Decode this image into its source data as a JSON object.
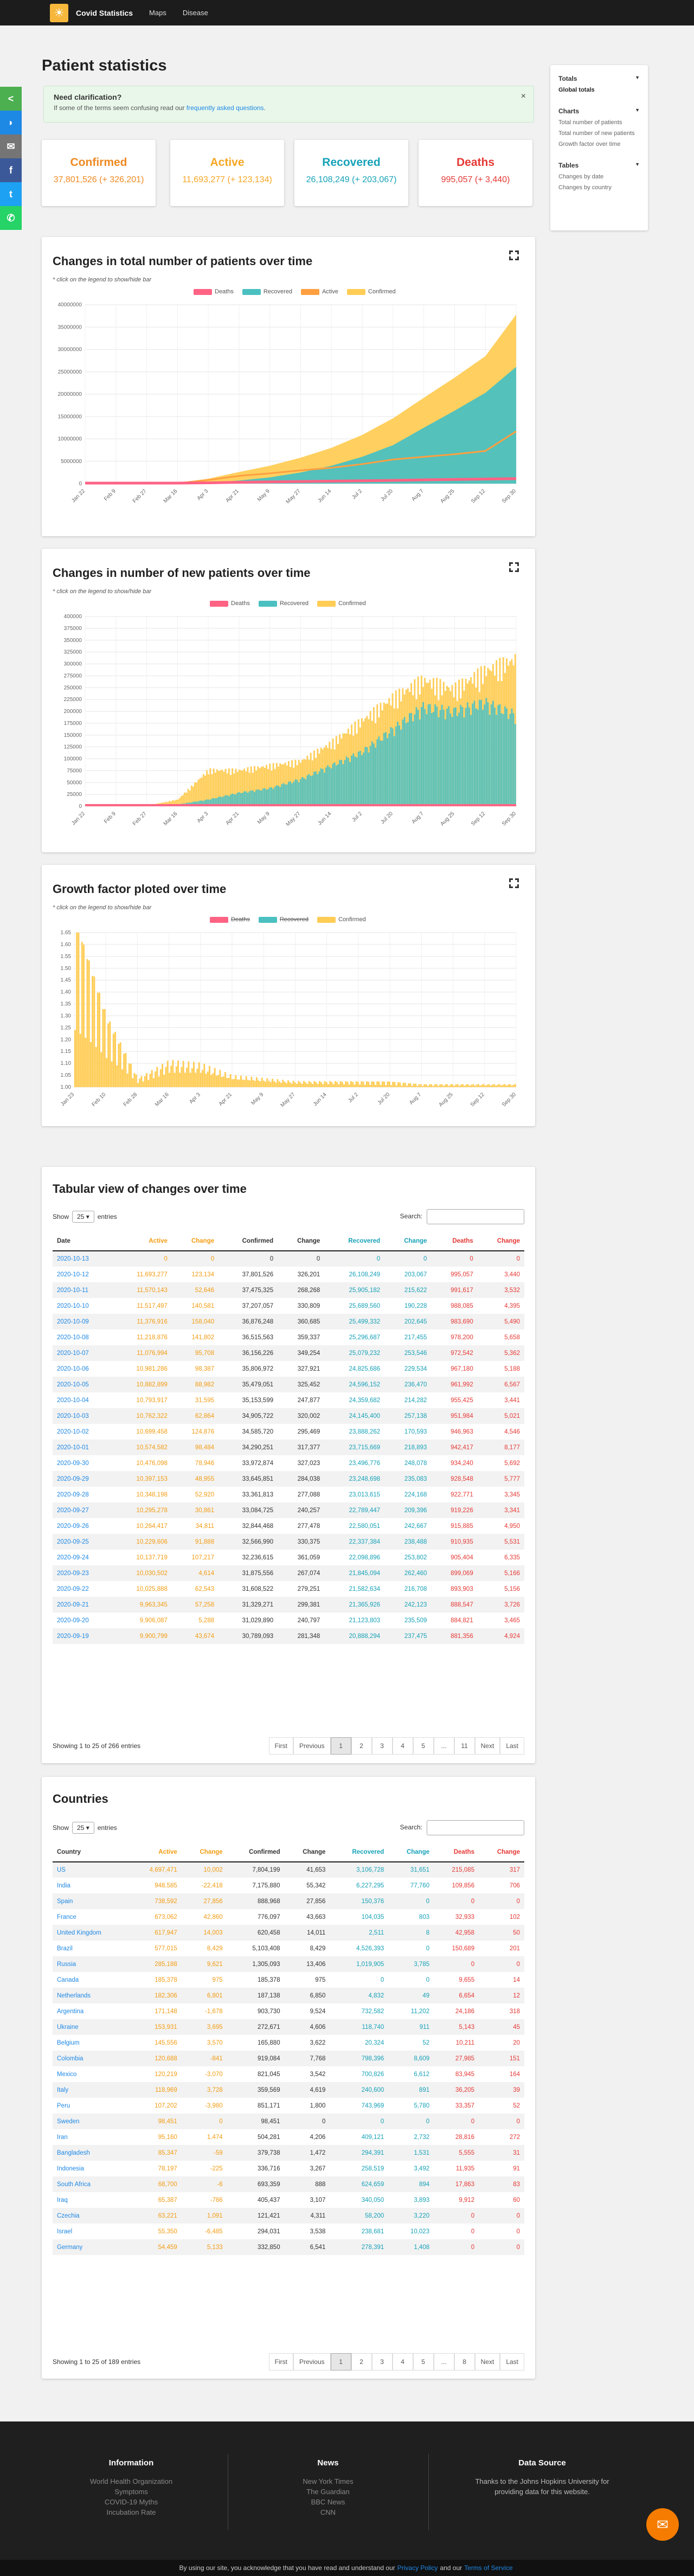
{
  "nav": {
    "brand": "Covid Statistics",
    "maps": "Maps",
    "disease": "Disease"
  },
  "page": {
    "title": "Patient statistics"
  },
  "notice": {
    "heading": "Need clarification?",
    "text": "If some of the terms seem confusing read our ",
    "link": "frequently asked questions",
    "close": "×"
  },
  "cards": {
    "confirmed": {
      "label": "Confirmed",
      "value": "37,801,526 (+ 326,201)",
      "color": "#ef8a23"
    },
    "active": {
      "label": "Active",
      "value": "11,693,277 (+ 123,134)",
      "color": "#f5a623"
    },
    "recovered": {
      "label": "Recovered",
      "value": "26,108,249 (+ 203,067)",
      "color": "#17a2b8"
    },
    "deaths": {
      "label": "Deaths",
      "value": "995,057 (+ 3,440)",
      "color": "#e53935"
    }
  },
  "sidenav": {
    "totals": "Totals",
    "global_totals": "Global totals",
    "charts": "Charts",
    "chart_items": [
      "Total number of patients",
      "Total number of new patients",
      "Growth factor over time"
    ],
    "tables": "Tables",
    "table_items": [
      "Changes by date",
      "Changes by country"
    ]
  },
  "share": {
    "icons": [
      "share-icon",
      "messenger-icon",
      "email-icon",
      "facebook-icon",
      "twitter-icon",
      "whatsapp-icon"
    ],
    "colors": [
      "#4caf50",
      "#1e88e5",
      "#757575",
      "#3b5998",
      "#1da1f2",
      "#25d366"
    ]
  },
  "hint": "* click on the legend to show/hide bar",
  "panel1": {
    "title": "Changes in total number of patients over time"
  },
  "panel2": {
    "title": "Changes in number of new patients over time"
  },
  "panel3": {
    "title": "Growth factor ploted over time"
  },
  "chart_data": [
    {
      "type": "area",
      "title": "Changes in total number of patients over time",
      "series_legend": [
        "Deaths",
        "Recovered",
        "Active",
        "Confirmed"
      ],
      "colors": {
        "Deaths": "#ff6384",
        "Recovered": "#4bc0c0",
        "Active": "#ff9f40",
        "Confirmed": "#ffcd56"
      },
      "x_ticks": [
        "Jan 22",
        "Feb 9",
        "Feb 27",
        "Mar 16",
        "Apr 3",
        "Apr 21",
        "May 9",
        "May 27",
        "Jun 14",
        "Jul 2",
        "Jul 20",
        "Aug 7",
        "Aug 25",
        "Sep 12",
        "Sep 30"
      ],
      "y_ticks": [
        "0",
        "5000000",
        "10000000",
        "15000000",
        "20000000",
        "25000000",
        "30000000",
        "35000000",
        "40000000"
      ],
      "ylim": [
        0,
        40000000
      ],
      "series": [
        {
          "name": "Confirmed",
          "values": [
            555,
            43000,
            84000,
            182000,
            1100000,
            2600000,
            4000000,
            5800000,
            8000000,
            10900000,
            14600000,
            19200000,
            23700000,
            28500000,
            37800000
          ]
        },
        {
          "name": "Recovered",
          "values": [
            28,
            1000,
            36000,
            80000,
            230000,
            690000,
            1400000,
            2500000,
            4000000,
            6000000,
            8600000,
            12500000,
            16300000,
            20300000,
            26100000
          ]
        },
        {
          "name": "Active",
          "values": [
            500,
            41000,
            45000,
            95000,
            810000,
            1730000,
            2300000,
            2970000,
            3550000,
            4370000,
            5390000,
            6000000,
            6580000,
            7300000,
            11690000
          ]
        },
        {
          "name": "Deaths",
          "values": [
            17,
            900,
            2800,
            7000,
            59000,
            180000,
            276000,
            350000,
            432000,
            522000,
            605000,
            726000,
            818000,
            904000,
            995000
          ]
        }
      ]
    },
    {
      "type": "bar",
      "title": "Changes in number of new patients over time",
      "series_legend": [
        "Deaths",
        "Recovered",
        "Confirmed"
      ],
      "colors": {
        "Deaths": "#ff6384",
        "Recovered": "#4bc0c0",
        "Confirmed": "#ffcd56"
      },
      "x_ticks": [
        "Jan 22",
        "Feb 9",
        "Feb 27",
        "Mar 16",
        "Apr 3",
        "Apr 21",
        "May 9",
        "May 27",
        "Jun 14",
        "Jul 2",
        "Jul 20",
        "Aug 7",
        "Aug 25",
        "Sep 12",
        "Sep 30"
      ],
      "y_ticks": [
        "0",
        "25000",
        "50000",
        "75000",
        "100000",
        "125000",
        "150000",
        "175000",
        "200000",
        "225000",
        "250000",
        "275000",
        "300000",
        "325000",
        "350000",
        "375000",
        "400000"
      ],
      "ylim": [
        0,
        400000
      ],
      "series": [
        {
          "name": "Confirmed",
          "values": [
            100,
            3000,
            1500,
            15000,
            80000,
            80000,
            90000,
            100000,
            140000,
            190000,
            240000,
            280000,
            260000,
            300000,
            326000
          ]
        },
        {
          "name": "Recovered",
          "values": [
            10,
            1200,
            2500,
            4000,
            15000,
            30000,
            40000,
            60000,
            90000,
            120000,
            170000,
            220000,
            210000,
            230000,
            203000
          ]
        },
        {
          "name": "Deaths",
          "values": [
            5,
            100,
            60,
            900,
            6000,
            7000,
            5000,
            4000,
            4000,
            4500,
            6000,
            6500,
            6000,
            6000,
            3440
          ]
        }
      ]
    },
    {
      "type": "bar",
      "title": "Growth factor ploted over time",
      "series_legend": [
        "Deaths",
        "Recovered",
        "Confirmed"
      ],
      "colors": {
        "Deaths": "#ff6384",
        "Recovered": "#4bc0c0",
        "Confirmed": "#ffcd56"
      },
      "x_ticks": [
        "Jan 23",
        "Feb 10",
        "Feb 28",
        "Mar 16",
        "Apr 3",
        "Apr 21",
        "May 9",
        "May 27",
        "Jun 14",
        "Jul 2",
        "Jul 20",
        "Aug 7",
        "Aug 25",
        "Sep 12",
        "Sep 30"
      ],
      "y_ticks": [
        "1.00",
        "1.05",
        "1.10",
        "1.15",
        "1.20",
        "1.25",
        "1.30",
        "1.35",
        "1.40",
        "1.45",
        "1.50",
        "1.55",
        "1.60",
        "1.65"
      ],
      "ylim": [
        1.0,
        1.65
      ],
      "series": [
        {
          "name": "Confirmed",
          "values": [
            1.6,
            1.25,
            1.03,
            1.09,
            1.08,
            1.04,
            1.03,
            1.02,
            1.02,
            1.02,
            1.02,
            1.01,
            1.01,
            1.01,
            1.01
          ]
        }
      ]
    }
  ],
  "daily": {
    "title": "Tabular view of changes over time",
    "show": "Show",
    "entries_sel": "25",
    "entries": "entries",
    "search": "Search:",
    "headers": [
      "Date",
      "Active",
      "Change",
      "Confirmed",
      "Change",
      "Recovered",
      "Change",
      "Deaths",
      "Change"
    ],
    "rows": [
      [
        "2020-10-13",
        "0",
        "0",
        "0",
        "0",
        "0",
        "0",
        "0",
        "0"
      ],
      [
        "2020-10-12",
        "11,693,277",
        "123,134",
        "37,801,526",
        "326,201",
        "26,108,249",
        "203,067",
        "995,057",
        "3,440"
      ],
      [
        "2020-10-11",
        "11,570,143",
        "52,646",
        "37,475,325",
        "268,268",
        "25,905,182",
        "215,622",
        "991,617",
        "3,532"
      ],
      [
        "2020-10-10",
        "11,517,497",
        "140,581",
        "37,207,057",
        "330,809",
        "25,689,560",
        "190,228",
        "988,085",
        "4,395"
      ],
      [
        "2020-10-09",
        "11,376,916",
        "158,040",
        "36,876,248",
        "360,685",
        "25,499,332",
        "202,645",
        "983,690",
        "5,490"
      ],
      [
        "2020-10-08",
        "11,218,876",
        "141,802",
        "36,515,563",
        "359,337",
        "25,296,687",
        "217,455",
        "978,200",
        "5,658"
      ],
      [
        "2020-10-07",
        "11,076,994",
        "95,708",
        "36,156,226",
        "349,254",
        "25,079,232",
        "253,546",
        "972,542",
        "5,362"
      ],
      [
        "2020-10-06",
        "10,981,286",
        "98,387",
        "35,806,972",
        "327,921",
        "24,825,686",
        "229,534",
        "967,180",
        "5,188"
      ],
      [
        "2020-10-05",
        "10,882,899",
        "88,982",
        "35,479,051",
        "325,452",
        "24,596,152",
        "236,470",
        "961,992",
        "6,567"
      ],
      [
        "2020-10-04",
        "10,793,917",
        "31,595",
        "35,153,599",
        "247,877",
        "24,359,682",
        "214,282",
        "955,425",
        "3,441"
      ],
      [
        "2020-10-03",
        "10,762,322",
        "62,864",
        "34,905,722",
        "320,002",
        "24,145,400",
        "257,138",
        "951,984",
        "5,021"
      ],
      [
        "2020-10-02",
        "10,699,458",
        "124,876",
        "34,585,720",
        "295,469",
        "23,888,262",
        "170,593",
        "946,963",
        "4,546"
      ],
      [
        "2020-10-01",
        "10,574,582",
        "98,484",
        "34,290,251",
        "317,377",
        "23,715,669",
        "218,893",
        "942,417",
        "8,177"
      ],
      [
        "2020-09-30",
        "10,476,098",
        "78,946",
        "33,972,874",
        "327,023",
        "23,496,776",
        "248,078",
        "934,240",
        "5,692"
      ],
      [
        "2020-09-29",
        "10,397,153",
        "48,955",
        "33,645,851",
        "284,038",
        "23,248,698",
        "235,083",
        "928,548",
        "5,777"
      ],
      [
        "2020-09-28",
        "10,348,198",
        "52,920",
        "33,361,813",
        "277,088",
        "23,013,615",
        "224,168",
        "922,771",
        "3,345"
      ],
      [
        "2020-09-27",
        "10,295,278",
        "30,861",
        "33,084,725",
        "240,257",
        "22,789,447",
        "209,396",
        "919,226",
        "3,341"
      ],
      [
        "2020-09-26",
        "10,264,417",
        "34,811",
        "32,844,468",
        "277,478",
        "22,580,051",
        "242,667",
        "915,885",
        "4,950"
      ],
      [
        "2020-09-25",
        "10,229,606",
        "91,888",
        "32,566,990",
        "330,375",
        "22,337,384",
        "238,488",
        "910,935",
        "5,531"
      ],
      [
        "2020-09-24",
        "10,137,719",
        "107,217",
        "32,236,615",
        "361,059",
        "22,098,896",
        "253,802",
        "905,404",
        "6,335"
      ],
      [
        "2020-09-23",
        "10,030,502",
        "4,614",
        "31,875,556",
        "267,074",
        "21,845,094",
        "262,460",
        "899,069",
        "5,166"
      ],
      [
        "2020-09-22",
        "10,025,888",
        "62,543",
        "31,608,522",
        "279,251",
        "21,582,634",
        "216,708",
        "893,903",
        "5,156"
      ],
      [
        "2020-09-21",
        "9,963,345",
        "57,258",
        "31,329,271",
        "299,381",
        "21,365,926",
        "242,123",
        "888,547",
        "3,726"
      ],
      [
        "2020-09-20",
        "9,906,087",
        "5,288",
        "31,029,890",
        "240,797",
        "21,123,803",
        "235,509",
        "884,821",
        "3,465"
      ],
      [
        "2020-09-19",
        "9,900,799",
        "43,674",
        "30,789,093",
        "281,348",
        "20,888,294",
        "237,475",
        "881,356",
        "4,924"
      ]
    ],
    "info": "Showing 1 to 25 of 266 entries",
    "pages": [
      "First",
      "Previous",
      "1",
      "2",
      "3",
      "4",
      "5",
      "...",
      "11",
      "Next",
      "Last"
    ]
  },
  "countries": {
    "title": "Countries",
    "show": "Show",
    "entries_sel": "25",
    "entries": "entries",
    "search": "Search:",
    "headers": [
      "Country",
      "Active",
      "Change",
      "Confirmed",
      "Change",
      "Recovered",
      "Change",
      "Deaths",
      "Change"
    ],
    "rows": [
      [
        "US",
        "4,697,471",
        "10,002",
        "7,804,199",
        "41,653",
        "3,106,728",
        "31,651",
        "215,085",
        "317"
      ],
      [
        "India",
        "948,585",
        "-22,418",
        "7,175,880",
        "55,342",
        "6,227,295",
        "77,760",
        "109,856",
        "706"
      ],
      [
        "Spain",
        "738,592",
        "27,856",
        "888,968",
        "27,856",
        "150,376",
        "0",
        "0",
        "0"
      ],
      [
        "France",
        "673,062",
        "42,860",
        "776,097",
        "43,663",
        "104,035",
        "803",
        "32,933",
        "102"
      ],
      [
        "United Kingdom",
        "617,947",
        "14,003",
        "620,458",
        "14,011",
        "2,511",
        "8",
        "42,958",
        "50"
      ],
      [
        "Brazil",
        "577,015",
        "8,429",
        "5,103,408",
        "8,429",
        "4,526,393",
        "0",
        "150,689",
        "201"
      ],
      [
        "Russia",
        "285,188",
        "9,621",
        "1,305,093",
        "13,406",
        "1,019,905",
        "3,785",
        "0",
        "0"
      ],
      [
        "Canada",
        "185,378",
        "975",
        "185,378",
        "975",
        "0",
        "0",
        "9,655",
        "14"
      ],
      [
        "Netherlands",
        "182,306",
        "6,801",
        "187,138",
        "6,850",
        "4,832",
        "49",
        "6,654",
        "12"
      ],
      [
        "Argentina",
        "171,148",
        "-1,678",
        "903,730",
        "9,524",
        "732,582",
        "11,202",
        "24,186",
        "318"
      ],
      [
        "Ukraine",
        "153,931",
        "3,695",
        "272,671",
        "4,606",
        "118,740",
        "911",
        "5,143",
        "45"
      ],
      [
        "Belgium",
        "145,556",
        "3,570",
        "165,880",
        "3,622",
        "20,324",
        "52",
        "10,211",
        "20"
      ],
      [
        "Colombia",
        "120,688",
        "-841",
        "919,084",
        "7,768",
        "798,396",
        "8,609",
        "27,985",
        "151"
      ],
      [
        "Mexico",
        "120,219",
        "-3,070",
        "821,045",
        "3,542",
        "700,826",
        "6,612",
        "83,945",
        "164"
      ],
      [
        "Italy",
        "118,969",
        "3,728",
        "359,569",
        "4,619",
        "240,600",
        "891",
        "36,205",
        "39"
      ],
      [
        "Peru",
        "107,202",
        "-3,980",
        "851,171",
        "1,800",
        "743,969",
        "5,780",
        "33,357",
        "52"
      ],
      [
        "Sweden",
        "98,451",
        "0",
        "98,451",
        "0",
        "0",
        "0",
        "0",
        "0"
      ],
      [
        "Iran",
        "95,160",
        "1,474",
        "504,281",
        "4,206",
        "409,121",
        "2,732",
        "28,816",
        "272"
      ],
      [
        "Bangladesh",
        "85,347",
        "-59",
        "379,738",
        "1,472",
        "294,391",
        "1,531",
        "5,555",
        "31"
      ],
      [
        "Indonesia",
        "78,197",
        "-225",
        "336,716",
        "3,267",
        "258,519",
        "3,492",
        "11,935",
        "91"
      ],
      [
        "South Africa",
        "68,700",
        "-6",
        "693,359",
        "888",
        "624,659",
        "894",
        "17,863",
        "83"
      ],
      [
        "Iraq",
        "65,387",
        "-786",
        "405,437",
        "3,107",
        "340,050",
        "3,893",
        "9,912",
        "60"
      ],
      [
        "Czechia",
        "63,221",
        "1,091",
        "121,421",
        "4,311",
        "58,200",
        "3,220",
        "0",
        "0"
      ],
      [
        "Israel",
        "55,350",
        "-6,485",
        "294,031",
        "3,538",
        "238,681",
        "10,023",
        "0",
        "0"
      ],
      [
        "Germany",
        "54,459",
        "5,133",
        "332,850",
        "6,541",
        "278,391",
        "1,408",
        "0",
        "0"
      ]
    ],
    "info": "Showing 1 to 25 of 189 entries",
    "pages": [
      "First",
      "Previous",
      "1",
      "2",
      "3",
      "4",
      "5",
      "...",
      "8",
      "Next",
      "Last"
    ]
  },
  "footer": {
    "info_title": "Information",
    "info_links": [
      "World Health Organization",
      "Symptoms",
      "COVID-19 Myths",
      "Incubation Rate"
    ],
    "news_title": "News",
    "news_links": [
      "New York Times",
      "The Guardian",
      "BBC News",
      "CNN"
    ],
    "source_title": "Data Source",
    "source_text": "Thanks to the Johns Hopkins University for providing data for this website."
  },
  "cookie": {
    "text": "By using our site, you acknowledge that you have read and understand our",
    "privacy": "Privacy Policy",
    "and": "and our",
    "terms": "Terms of Service"
  }
}
